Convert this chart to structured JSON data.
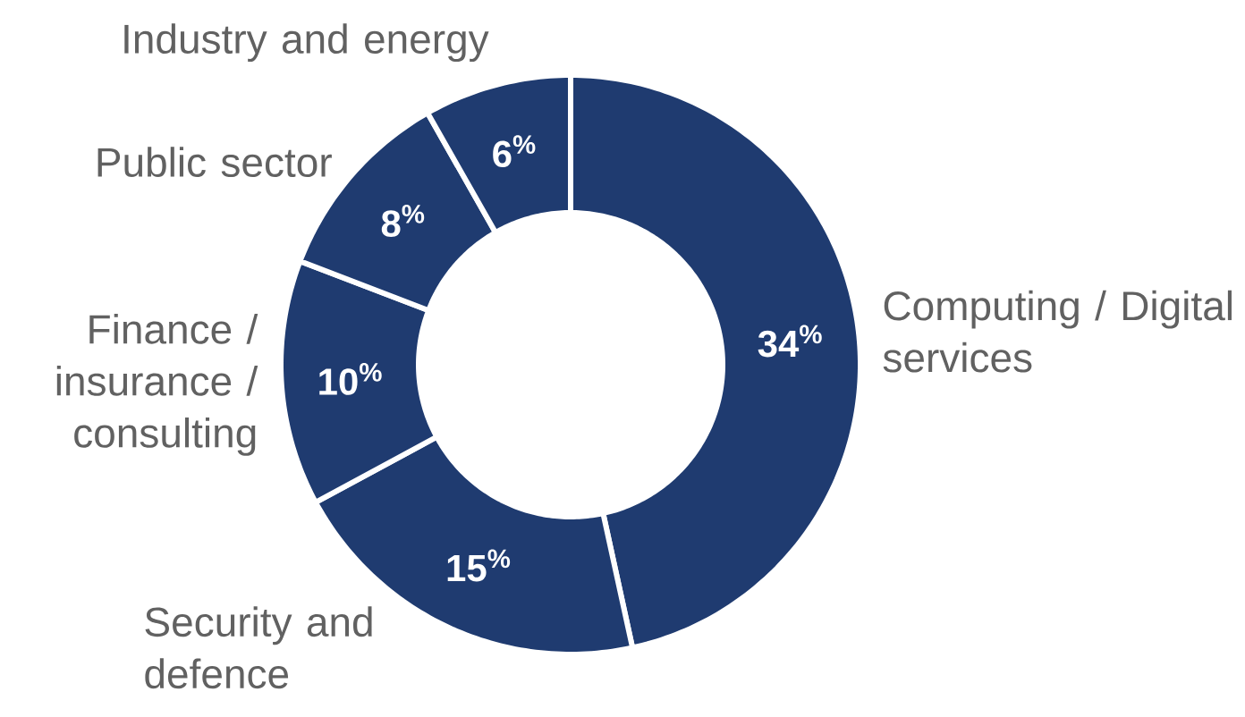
{
  "chart_data": {
    "type": "donut",
    "categories": [
      "Computing / Digital services",
      "Security and defence",
      "Finance / insurance / consulting",
      "Public sector",
      "Industry and energy"
    ],
    "values": [
      34,
      15,
      10,
      8,
      6
    ],
    "value_labels": [
      "34$^{%}$",
      "15$^{%}$",
      "10$^{%}$",
      "8$^{%}$",
      "6$^{%}$"
    ],
    "colors": [
      "#1f3b70",
      "#1f3b70",
      "#1f3b70",
      "#1f3b70",
      "#1f3b70"
    ]
  }
}
